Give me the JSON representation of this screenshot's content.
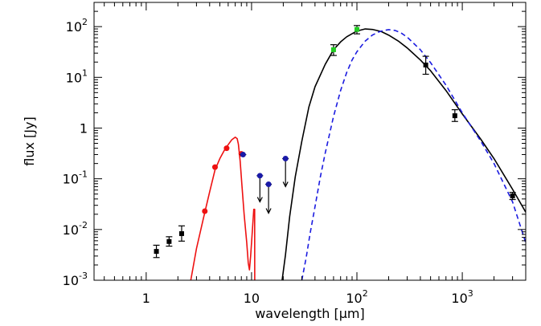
{
  "chart_data": {
    "type": "scatter",
    "xlabel": "wavelength [μm]",
    "ylabel": "flux [Jy]",
    "xscale": "log",
    "yscale": "log",
    "xlim": [
      0.32,
      4000
    ],
    "ylim": [
      0.001,
      300
    ],
    "grid": false,
    "legend": "none",
    "x_ticks": [
      {
        "value": 1,
        "label": "1"
      },
      {
        "value": 10,
        "label": "10"
      },
      {
        "value": 100,
        "label": "10^2"
      },
      {
        "value": 1000,
        "label": "10^3"
      }
    ],
    "y_ticks": [
      {
        "value": 0.001,
        "label": "10^-3"
      },
      {
        "value": 0.01,
        "label": "10^-2"
      },
      {
        "value": 0.1,
        "label": "10^-1"
      },
      {
        "value": 1,
        "label": "1"
      },
      {
        "value": 10,
        "label": "10^1"
      },
      {
        "value": 100,
        "label": "10^2"
      }
    ],
    "colors": {
      "black_points": "#000000",
      "red_points": "#ee1111",
      "blue_points": "#1a1aa8",
      "green_points": "#22cc22",
      "red_curve": "#ee1111",
      "black_curve": "#000000",
      "blue_dashed_curve": "#1c1ce0"
    },
    "series": [
      {
        "kind": "points",
        "color_key": "black_points",
        "marker": "square",
        "points": [
          {
            "x": 1.25,
            "y": 0.0037,
            "ylo": 0.0028,
            "yhi": 0.0049
          },
          {
            "x": 1.65,
            "y": 0.0058,
            "ylo": 0.0047,
            "yhi": 0.0072
          },
          {
            "x": 2.17,
            "y": 0.0083,
            "ylo": 0.0059,
            "yhi": 0.0118
          },
          {
            "x": 450,
            "y": 17.5,
            "ylo": 11.5,
            "yhi": 26
          },
          {
            "x": 850,
            "y": 1.75,
            "ylo": 1.35,
            "yhi": 2.3
          },
          {
            "x": 3000,
            "y": 0.046,
            "ylo": 0.039,
            "yhi": 0.054
          }
        ]
      },
      {
        "kind": "points",
        "color_key": "red_points",
        "marker": "circle",
        "points": [
          {
            "x": 3.6,
            "y": 0.023
          },
          {
            "x": 4.5,
            "y": 0.17
          },
          {
            "x": 5.8,
            "y": 0.4
          },
          {
            "x": 8.0,
            "y": 0.31
          }
        ]
      },
      {
        "kind": "upper_limits",
        "color_key": "blue_points",
        "marker": "circle",
        "points": [
          {
            "x": 8.3,
            "y": 0.3,
            "y_to": 0.3
          },
          {
            "x": 12,
            "y": 0.115,
            "y_to": 0.035
          },
          {
            "x": 14.5,
            "y": 0.078,
            "y_to": 0.021
          },
          {
            "x": 21,
            "y": 0.25,
            "y_to": 0.07
          }
        ]
      },
      {
        "kind": "points",
        "color_key": "green_points",
        "marker": "square",
        "points": [
          {
            "x": 60,
            "y": 35,
            "ylo": 27,
            "yhi": 44
          },
          {
            "x": 100,
            "y": 88,
            "ylo": 72,
            "yhi": 105
          }
        ]
      },
      {
        "kind": "line",
        "color_key": "red_curve",
        "dash": false,
        "points": [
          [
            2.65,
            0.001
          ],
          [
            3.0,
            0.0042
          ],
          [
            3.5,
            0.017
          ],
          [
            4.0,
            0.055
          ],
          [
            4.5,
            0.15
          ],
          [
            5.0,
            0.25
          ],
          [
            5.5,
            0.36
          ],
          [
            6.0,
            0.47
          ],
          [
            6.5,
            0.59
          ],
          [
            7.0,
            0.66
          ],
          [
            7.3,
            0.62
          ],
          [
            7.5,
            0.48
          ],
          [
            7.8,
            0.22
          ],
          [
            8.1,
            0.075
          ],
          [
            8.5,
            0.02
          ],
          [
            9.0,
            0.0055
          ],
          [
            9.3,
            0.0022
          ],
          [
            9.55,
            0.0016
          ],
          [
            9.8,
            0.003
          ],
          [
            10.1,
            0.0075
          ],
          [
            10.5,
            0.025
          ],
          [
            10.7,
            0.025
          ],
          [
            10.72,
            0.001
          ]
        ]
      },
      {
        "kind": "line",
        "color_key": "black_curve",
        "dash": false,
        "points": [
          [
            19.5,
            0.001
          ],
          [
            21,
            0.0032
          ],
          [
            23,
            0.018
          ],
          [
            26,
            0.11
          ],
          [
            30,
            0.55
          ],
          [
            35,
            2.6
          ],
          [
            40,
            6.5
          ],
          [
            50,
            18
          ],
          [
            60,
            35
          ],
          [
            70,
            50
          ],
          [
            80,
            63
          ],
          [
            100,
            82
          ],
          [
            120,
            90
          ],
          [
            140,
            88
          ],
          [
            170,
            80
          ],
          [
            200,
            68
          ],
          [
            250,
            51
          ],
          [
            300,
            38
          ],
          [
            400,
            22
          ],
          [
            500,
            13.5
          ],
          [
            700,
            5.5
          ],
          [
            1000,
            1.9
          ],
          [
            1500,
            0.6
          ],
          [
            2000,
            0.25
          ],
          [
            3000,
            0.062
          ],
          [
            4000,
            0.022
          ]
        ]
      },
      {
        "kind": "line",
        "color_key": "blue_dashed_curve",
        "dash": true,
        "points": [
          [
            30,
            0.001
          ],
          [
            33,
            0.0028
          ],
          [
            36,
            0.0085
          ],
          [
            40,
            0.028
          ],
          [
            45,
            0.11
          ],
          [
            50,
            0.32
          ],
          [
            60,
            1.7
          ],
          [
            70,
            5.5
          ],
          [
            80,
            12.5
          ],
          [
            90,
            22
          ],
          [
            100,
            32
          ],
          [
            120,
            52
          ],
          [
            140,
            68
          ],
          [
            160,
            78
          ],
          [
            180,
            84
          ],
          [
            200,
            87
          ],
          [
            230,
            84
          ],
          [
            260,
            76
          ],
          [
            300,
            62
          ],
          [
            400,
            35
          ],
          [
            500,
            19.5
          ],
          [
            700,
            7
          ],
          [
            1000,
            2.0
          ],
          [
            1500,
            0.55
          ],
          [
            2000,
            0.2
          ],
          [
            3000,
            0.035
          ],
          [
            4000,
            0.0055
          ]
        ]
      }
    ]
  }
}
